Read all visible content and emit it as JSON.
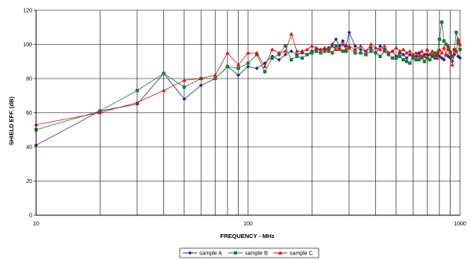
{
  "chart_data": {
    "type": "line",
    "xlabel": "FREQUENCY  - MHz",
    "ylabel": "SHIELD EFF. (dB)",
    "xscale": "log",
    "xlim": [
      10,
      1000
    ],
    "ylim": [
      0,
      120
    ],
    "x_ticks": [
      10,
      100,
      1000
    ],
    "y_ticks": [
      0,
      20,
      40,
      60,
      80,
      100,
      120
    ],
    "grid": "on",
    "legend": "bottom",
    "series": [
      {
        "name": "sample A",
        "color": "#1f2a80",
        "marker": "diamond",
        "points": [
          [
            10,
            41
          ],
          [
            20,
            61
          ],
          [
            30,
            65
          ],
          [
            40,
            83
          ],
          [
            50,
            68
          ],
          [
            60,
            76
          ],
          [
            70,
            80
          ],
          [
            80,
            87
          ],
          [
            90,
            82
          ],
          [
            100,
            87
          ],
          [
            110,
            86
          ],
          [
            120,
            89
          ],
          [
            130,
            93
          ],
          [
            140,
            91
          ],
          [
            150,
            94
          ],
          [
            160,
            96
          ],
          [
            170,
            94
          ],
          [
            180,
            95
          ],
          [
            190,
            94
          ],
          [
            200,
            96
          ],
          [
            210,
            97
          ],
          [
            220,
            97
          ],
          [
            230,
            97
          ],
          [
            240,
            98
          ],
          [
            250,
            100
          ],
          [
            260,
            103
          ],
          [
            270,
            99
          ],
          [
            280,
            102
          ],
          [
            290,
            99
          ],
          [
            300,
            107
          ],
          [
            320,
            99
          ],
          [
            340,
            97
          ],
          [
            360,
            96
          ],
          [
            380,
            98
          ],
          [
            400,
            95
          ],
          [
            420,
            99
          ],
          [
            440,
            97
          ],
          [
            460,
            95
          ],
          [
            480,
            96
          ],
          [
            500,
            93
          ],
          [
            520,
            95
          ],
          [
            540,
            94
          ],
          [
            560,
            92
          ],
          [
            580,
            94
          ],
          [
            600,
            93
          ],
          [
            620,
            93
          ],
          [
            640,
            95
          ],
          [
            660,
            92
          ],
          [
            680,
            94
          ],
          [
            700,
            94
          ],
          [
            720,
            91
          ],
          [
            740,
            93
          ],
          [
            760,
            92
          ],
          [
            780,
            94
          ],
          [
            800,
            93
          ],
          [
            820,
            92
          ],
          [
            840,
            91
          ],
          [
            860,
            94
          ],
          [
            880,
            93
          ],
          [
            900,
            92
          ],
          [
            920,
            90
          ],
          [
            940,
            94
          ],
          [
            960,
            96
          ],
          [
            980,
            93
          ],
          [
            1000,
            92
          ]
        ]
      },
      {
        "name": "sample B",
        "color": "#1a7a3a",
        "marker": "square",
        "points": [
          [
            10,
            50
          ],
          [
            20,
            61
          ],
          [
            30,
            73
          ],
          [
            40,
            83
          ],
          [
            50,
            75
          ],
          [
            60,
            80
          ],
          [
            70,
            80
          ],
          [
            80,
            87
          ],
          [
            90,
            86
          ],
          [
            100,
            89
          ],
          [
            110,
            94
          ],
          [
            120,
            84
          ],
          [
            130,
            92
          ],
          [
            140,
            94
          ],
          [
            150,
            99
          ],
          [
            160,
            91
          ],
          [
            170,
            93
          ],
          [
            180,
            92
          ],
          [
            190,
            94
          ],
          [
            200,
            95
          ],
          [
            210,
            96
          ],
          [
            220,
            95
          ],
          [
            230,
            96
          ],
          [
            240,
            97
          ],
          [
            250,
            95
          ],
          [
            260,
            99
          ],
          [
            270,
            97
          ],
          [
            280,
            96
          ],
          [
            290,
            96
          ],
          [
            300,
            98
          ],
          [
            320,
            95
          ],
          [
            340,
            95
          ],
          [
            360,
            94
          ],
          [
            380,
            96
          ],
          [
            400,
            95
          ],
          [
            420,
            93
          ],
          [
            440,
            96
          ],
          [
            460,
            94
          ],
          [
            480,
            92
          ],
          [
            500,
            92
          ],
          [
            520,
            93
          ],
          [
            540,
            91
          ],
          [
            560,
            90
          ],
          [
            580,
            89
          ],
          [
            600,
            92
          ],
          [
            620,
            91
          ],
          [
            640,
            91
          ],
          [
            660,
            93
          ],
          [
            680,
            90
          ],
          [
            700,
            92
          ],
          [
            720,
            91
          ],
          [
            740,
            94
          ],
          [
            760,
            93
          ],
          [
            780,
            95
          ],
          [
            800,
            103
          ],
          [
            820,
            113
          ],
          [
            840,
            102
          ],
          [
            860,
            100
          ],
          [
            880,
            97
          ],
          [
            900,
            95
          ],
          [
            920,
            93
          ],
          [
            940,
            97
          ],
          [
            960,
            107
          ],
          [
            980,
            101
          ],
          [
            1000,
            97
          ]
        ]
      },
      {
        "name": "sample C",
        "color": "#e01010",
        "marker": "triangle",
        "points": [
          [
            10,
            53
          ],
          [
            20,
            60
          ],
          [
            30,
            66
          ],
          [
            40,
            73
          ],
          [
            50,
            79
          ],
          [
            60,
            80
          ],
          [
            70,
            82
          ],
          [
            80,
            95
          ],
          [
            90,
            88
          ],
          [
            100,
            95
          ],
          [
            110,
            95
          ],
          [
            120,
            87
          ],
          [
            130,
            97
          ],
          [
            140,
            95
          ],
          [
            150,
            96
          ],
          [
            160,
            106
          ],
          [
            170,
            96
          ],
          [
            180,
            96
          ],
          [
            190,
            97
          ],
          [
            200,
            99
          ],
          [
            210,
            98
          ],
          [
            220,
            97
          ],
          [
            230,
            98
          ],
          [
            240,
            96
          ],
          [
            250,
            99
          ],
          [
            260,
            97
          ],
          [
            270,
            98
          ],
          [
            280,
            100
          ],
          [
            290,
            97
          ],
          [
            300,
            99
          ],
          [
            320,
            97
          ],
          [
            340,
            99
          ],
          [
            360,
            96
          ],
          [
            380,
            100
          ],
          [
            400,
            98
          ],
          [
            420,
            97
          ],
          [
            440,
            99
          ],
          [
            460,
            95
          ],
          [
            480,
            96
          ],
          [
            500,
            98
          ],
          [
            520,
            96
          ],
          [
            540,
            97
          ],
          [
            560,
            95
          ],
          [
            580,
            96
          ],
          [
            600,
            94
          ],
          [
            620,
            95
          ],
          [
            640,
            93
          ],
          [
            660,
            96
          ],
          [
            680,
            93
          ],
          [
            700,
            97
          ],
          [
            720,
            94
          ],
          [
            740,
            96
          ],
          [
            760,
            95
          ],
          [
            780,
            92
          ],
          [
            800,
            97
          ],
          [
            820,
            95
          ],
          [
            840,
            98
          ],
          [
            860,
            94
          ],
          [
            880,
            99
          ],
          [
            900,
            96
          ],
          [
            920,
            88
          ],
          [
            940,
            97
          ],
          [
            960,
            96
          ],
          [
            980,
            103
          ],
          [
            1000,
            100
          ]
        ]
      }
    ]
  }
}
